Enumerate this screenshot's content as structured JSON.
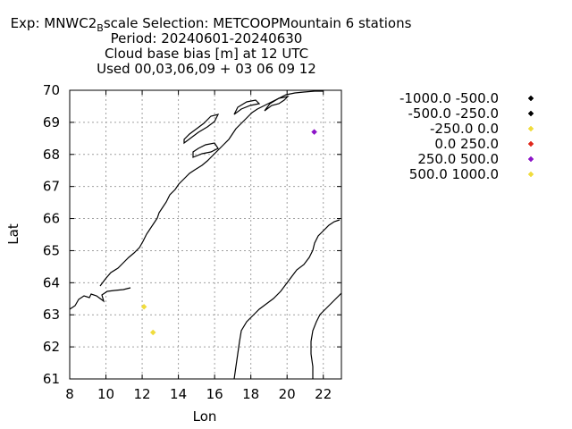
{
  "chart_data": {
    "type": "scatter",
    "title_lines": [
      "Exp: MNWC2_Bscale   Selection: METCOOPMountain      6 stations",
      "Period: 20240601-20240630",
      "Cloud base bias [m] at  12 UTC",
      "Used 00,03,06,09 + 03 06 09 12"
    ],
    "title_exp_prefix": "Exp: MNWC2",
    "title_exp_subscript": "B",
    "title_exp_suffix": "scale   Selection: METCOOPMountain      6 stations",
    "xlabel": "Lon",
    "ylabel": "Lat",
    "xlim": [
      8,
      23
    ],
    "ylim": [
      61,
      70
    ],
    "xticks": [
      "8",
      "10",
      "12",
      "14",
      "16",
      "18",
      "20",
      "22"
    ],
    "yticks": [
      "61",
      "62",
      "63",
      "64",
      "65",
      "66",
      "67",
      "68",
      "69",
      "70"
    ],
    "grid": true,
    "legend_position": "right",
    "legend": [
      {
        "label": "-1000.0 -500.0",
        "color": "#000000"
      },
      {
        "label": "-500.0 -250.0",
        "color": "#000000"
      },
      {
        "label": "-250.0 0.0",
        "color": "#f0dc3c"
      },
      {
        "label": "0.0 250.0",
        "color": "#e0281c"
      },
      {
        "label": "250.0 500.0",
        "color": "#8c14c8"
      },
      {
        "label": "500.0 1000.0",
        "color": "#f0dc3c"
      }
    ],
    "points": [
      {
        "lon": 21.5,
        "lat": 68.7,
        "color": "#8c14c8"
      },
      {
        "lon": 12.1,
        "lat": 63.25,
        "color": "#f0dc3c"
      },
      {
        "lon": 12.6,
        "lat": 62.45,
        "color": "#f0dc3c"
      }
    ]
  }
}
